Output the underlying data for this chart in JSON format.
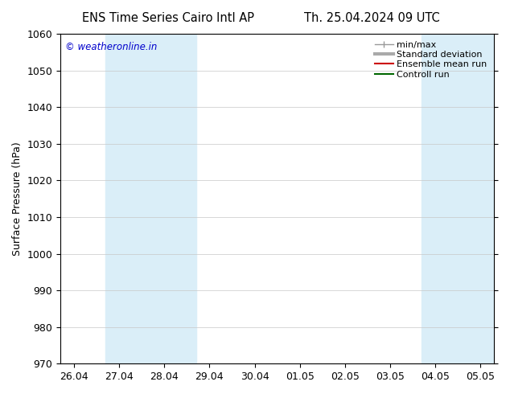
{
  "title_left": "ENS Time Series Cairo Intl AP",
  "title_right": "Th. 25.04.2024 09 UTC",
  "ylabel": "Surface Pressure (hPa)",
  "watermark": "© weatheronline.in",
  "watermark_color": "#0000cc",
  "ylim": [
    970,
    1060
  ],
  "yticks": [
    970,
    980,
    990,
    1000,
    1010,
    1020,
    1030,
    1040,
    1050,
    1060
  ],
  "xtick_labels": [
    "26.04",
    "27.04",
    "28.04",
    "29.04",
    "30.04",
    "01.05",
    "02.05",
    "03.05",
    "04.05",
    "05.05"
  ],
  "xtick_positions": [
    0,
    1,
    2,
    3,
    4,
    5,
    6,
    7,
    8,
    9
  ],
  "xlim": [
    -0.3,
    9.3
  ],
  "shaded_bands": [
    {
      "x_start": 0.7,
      "x_end": 2.7,
      "color": "#daeef8"
    },
    {
      "x_start": 7.7,
      "x_end": 9.3,
      "color": "#daeef8"
    }
  ],
  "legend_entries": [
    {
      "label": "min/max",
      "color": "#999999",
      "linestyle": "-",
      "linewidth": 1.0
    },
    {
      "label": "Standard deviation",
      "color": "#aaaaaa",
      "linestyle": "-",
      "linewidth": 3.0
    },
    {
      "label": "Ensemble mean run",
      "color": "#cc0000",
      "linestyle": "-",
      "linewidth": 1.5
    },
    {
      "label": "Controll run",
      "color": "#006600",
      "linestyle": "-",
      "linewidth": 1.5
    }
  ],
  "background_color": "#ffffff",
  "grid_color": "#c8c8c8",
  "title_fontsize": 10.5,
  "axis_fontsize": 9,
  "tick_fontsize": 9
}
